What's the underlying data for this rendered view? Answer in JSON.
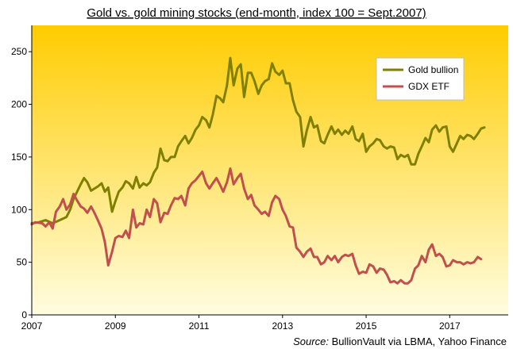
{
  "chart_data": {
    "type": "line",
    "title": "Gold vs. gold mining stocks (end-month,  index 100 = Sept.2007)",
    "xlabel": "",
    "ylabel": "",
    "xlim": [
      2007,
      2018.4
    ],
    "ylim": [
      0,
      275
    ],
    "x_ticks": [
      "2007",
      "2009",
      "2011",
      "2013",
      "2015",
      "2017"
    ],
    "y_ticks": [
      "0",
      "50",
      "100",
      "150",
      "200",
      "250"
    ],
    "grid": false,
    "legend_position": "top-right",
    "background": [
      "#ffcc00",
      "#fffde0"
    ],
    "series": [
      {
        "name": "Gold bullion",
        "color": "#808000",
        "points": [
          [
            2007.0,
            87
          ],
          [
            2007.17,
            88
          ],
          [
            2007.33,
            90
          ],
          [
            2007.5,
            87
          ],
          [
            2007.67,
            90
          ],
          [
            2007.83,
            93
          ],
          [
            2007.92,
            100
          ],
          [
            2008.0,
            110
          ],
          [
            2008.17,
            124
          ],
          [
            2008.25,
            130
          ],
          [
            2008.33,
            126
          ],
          [
            2008.42,
            118
          ],
          [
            2008.58,
            122
          ],
          [
            2008.67,
            125
          ],
          [
            2008.75,
            117
          ],
          [
            2008.83,
            121
          ],
          [
            2008.92,
            98
          ],
          [
            2009.0,
            108
          ],
          [
            2009.08,
            117
          ],
          [
            2009.17,
            121
          ],
          [
            2009.25,
            127
          ],
          [
            2009.33,
            125
          ],
          [
            2009.42,
            120
          ],
          [
            2009.5,
            131
          ],
          [
            2009.58,
            121
          ],
          [
            2009.67,
            125
          ],
          [
            2009.75,
            123
          ],
          [
            2009.83,
            126
          ],
          [
            2009.92,
            135
          ],
          [
            2010.0,
            140
          ],
          [
            2010.08,
            158
          ],
          [
            2010.17,
            147
          ],
          [
            2010.25,
            146
          ],
          [
            2010.33,
            150
          ],
          [
            2010.42,
            150
          ],
          [
            2010.5,
            160
          ],
          [
            2010.58,
            165
          ],
          [
            2010.67,
            170
          ],
          [
            2010.75,
            163
          ],
          [
            2010.83,
            168
          ],
          [
            2010.92,
            176
          ],
          [
            2011.0,
            180
          ],
          [
            2011.08,
            188
          ],
          [
            2011.17,
            185
          ],
          [
            2011.25,
            178
          ],
          [
            2011.33,
            190
          ],
          [
            2011.42,
            208
          ],
          [
            2011.5,
            206
          ],
          [
            2011.58,
            202
          ],
          [
            2011.67,
            218
          ],
          [
            2011.75,
            244
          ],
          [
            2011.83,
            218
          ],
          [
            2011.92,
            234
          ],
          [
            2012.0,
            238
          ],
          [
            2012.08,
            207
          ],
          [
            2012.17,
            230
          ],
          [
            2012.25,
            230
          ],
          [
            2012.33,
            222
          ],
          [
            2012.42,
            210
          ],
          [
            2012.5,
            218
          ],
          [
            2012.58,
            222
          ],
          [
            2012.67,
            224
          ],
          [
            2012.75,
            239
          ],
          [
            2012.83,
            231
          ],
          [
            2012.92,
            228
          ],
          [
            2013.0,
            232
          ],
          [
            2013.08,
            220
          ],
          [
            2013.17,
            220
          ],
          [
            2013.25,
            204
          ],
          [
            2013.33,
            193
          ],
          [
            2013.42,
            188
          ],
          [
            2013.5,
            160
          ],
          [
            2013.58,
            175
          ],
          [
            2013.67,
            188
          ],
          [
            2013.75,
            178
          ],
          [
            2013.83,
            180
          ],
          [
            2013.92,
            165
          ],
          [
            2014.0,
            163
          ],
          [
            2014.08,
            171
          ],
          [
            2014.17,
            179
          ],
          [
            2014.25,
            172
          ],
          [
            2014.33,
            176
          ],
          [
            2014.42,
            171
          ],
          [
            2014.5,
            175
          ],
          [
            2014.58,
            172
          ],
          [
            2014.67,
            179
          ],
          [
            2014.75,
            167
          ],
          [
            2014.83,
            165
          ],
          [
            2014.92,
            172
          ],
          [
            2015.0,
            155
          ],
          [
            2015.08,
            160
          ],
          [
            2015.17,
            163
          ],
          [
            2015.25,
            167
          ],
          [
            2015.33,
            166
          ],
          [
            2015.42,
            160
          ],
          [
            2015.5,
            158
          ],
          [
            2015.58,
            160
          ],
          [
            2015.67,
            159
          ],
          [
            2015.75,
            148
          ],
          [
            2015.83,
            152
          ],
          [
            2015.92,
            150
          ],
          [
            2016.0,
            152
          ],
          [
            2016.08,
            143
          ],
          [
            2016.17,
            143
          ],
          [
            2016.25,
            153
          ],
          [
            2016.33,
            160
          ],
          [
            2016.42,
            168
          ],
          [
            2016.5,
            164
          ],
          [
            2016.58,
            176
          ],
          [
            2016.67,
            180
          ],
          [
            2016.75,
            174
          ],
          [
            2016.83,
            178
          ],
          [
            2016.92,
            179
          ],
          [
            2017.0,
            160
          ],
          [
            2017.08,
            155
          ],
          [
            2017.17,
            163
          ],
          [
            2017.25,
            170
          ],
          [
            2017.33,
            167
          ],
          [
            2017.42,
            171
          ],
          [
            2017.5,
            170
          ],
          [
            2017.58,
            167
          ],
          [
            2017.67,
            172
          ],
          [
            2017.75,
            177
          ],
          [
            2017.83,
            178
          ]
        ]
      },
      {
        "name": "GDX ETF",
        "color": "#c0504d",
        "points": [
          [
            2007.0,
            86
          ],
          [
            2007.08,
            88
          ],
          [
            2007.25,
            87
          ],
          [
            2007.33,
            84
          ],
          [
            2007.42,
            88
          ],
          [
            2007.5,
            82
          ],
          [
            2007.58,
            98
          ],
          [
            2007.67,
            103
          ],
          [
            2007.75,
            110
          ],
          [
            2007.83,
            100
          ],
          [
            2007.92,
            105
          ],
          [
            2008.0,
            115
          ],
          [
            2008.08,
            109
          ],
          [
            2008.17,
            103
          ],
          [
            2008.25,
            101
          ],
          [
            2008.33,
            97
          ],
          [
            2008.42,
            103
          ],
          [
            2008.5,
            97
          ],
          [
            2008.58,
            90
          ],
          [
            2008.67,
            82
          ],
          [
            2008.75,
            69
          ],
          [
            2008.83,
            47
          ],
          [
            2008.92,
            60
          ],
          [
            2009.0,
            73
          ],
          [
            2009.08,
            75
          ],
          [
            2009.17,
            74
          ],
          [
            2009.25,
            80
          ],
          [
            2009.33,
            73
          ],
          [
            2009.42,
            100
          ],
          [
            2009.5,
            83
          ],
          [
            2009.58,
            87
          ],
          [
            2009.67,
            86
          ],
          [
            2009.75,
            100
          ],
          [
            2009.83,
            93
          ],
          [
            2009.92,
            110
          ],
          [
            2010.0,
            106
          ],
          [
            2010.08,
            88
          ],
          [
            2010.17,
            97
          ],
          [
            2010.25,
            96
          ],
          [
            2010.33,
            104
          ],
          [
            2010.42,
            111
          ],
          [
            2010.5,
            110
          ],
          [
            2010.58,
            113
          ],
          [
            2010.67,
            104
          ],
          [
            2010.75,
            120
          ],
          [
            2010.83,
            125
          ],
          [
            2010.92,
            128
          ],
          [
            2011.0,
            132
          ],
          [
            2011.08,
            136
          ],
          [
            2011.17,
            125
          ],
          [
            2011.25,
            120
          ],
          [
            2011.33,
            125
          ],
          [
            2011.42,
            130
          ],
          [
            2011.5,
            124
          ],
          [
            2011.58,
            117
          ],
          [
            2011.67,
            126
          ],
          [
            2011.75,
            139
          ],
          [
            2011.83,
            124
          ],
          [
            2011.92,
            130
          ],
          [
            2012.0,
            134
          ],
          [
            2012.08,
            120
          ],
          [
            2012.17,
            110
          ],
          [
            2012.25,
            114
          ],
          [
            2012.33,
            104
          ],
          [
            2012.42,
            100
          ],
          [
            2012.5,
            96
          ],
          [
            2012.58,
            98
          ],
          [
            2012.67,
            94
          ],
          [
            2012.75,
            107
          ],
          [
            2012.83,
            113
          ],
          [
            2012.92,
            110
          ],
          [
            2013.0,
            100
          ],
          [
            2013.08,
            94
          ],
          [
            2013.17,
            84
          ],
          [
            2013.25,
            83
          ],
          [
            2013.33,
            64
          ],
          [
            2013.42,
            60
          ],
          [
            2013.5,
            55
          ],
          [
            2013.58,
            60
          ],
          [
            2013.67,
            63
          ],
          [
            2013.75,
            55
          ],
          [
            2013.83,
            55
          ],
          [
            2013.92,
            48
          ],
          [
            2014.0,
            50
          ],
          [
            2014.08,
            56
          ],
          [
            2014.17,
            52
          ],
          [
            2014.25,
            56
          ],
          [
            2014.33,
            50
          ],
          [
            2014.42,
            55
          ],
          [
            2014.5,
            57
          ],
          [
            2014.58,
            56
          ],
          [
            2014.67,
            58
          ],
          [
            2014.75,
            47
          ],
          [
            2014.83,
            39
          ],
          [
            2014.92,
            41
          ],
          [
            2015.0,
            40
          ],
          [
            2015.08,
            48
          ],
          [
            2015.17,
            46
          ],
          [
            2015.25,
            40
          ],
          [
            2015.33,
            44
          ],
          [
            2015.42,
            43
          ],
          [
            2015.5,
            38
          ],
          [
            2015.58,
            31
          ],
          [
            2015.67,
            32
          ],
          [
            2015.75,
            30
          ],
          [
            2015.83,
            33
          ],
          [
            2015.92,
            30
          ],
          [
            2016.0,
            30
          ],
          [
            2016.08,
            33
          ],
          [
            2016.17,
            44
          ],
          [
            2016.25,
            47
          ],
          [
            2016.33,
            56
          ],
          [
            2016.42,
            50
          ],
          [
            2016.5,
            62
          ],
          [
            2016.58,
            67
          ],
          [
            2016.67,
            56
          ],
          [
            2016.75,
            58
          ],
          [
            2016.83,
            55
          ],
          [
            2016.92,
            46
          ],
          [
            2017.0,
            47
          ],
          [
            2017.08,
            52
          ],
          [
            2017.17,
            50
          ],
          [
            2017.25,
            50
          ],
          [
            2017.33,
            48
          ],
          [
            2017.42,
            50
          ],
          [
            2017.5,
            49
          ],
          [
            2017.58,
            50
          ],
          [
            2017.67,
            55
          ],
          [
            2017.75,
            53
          ]
        ]
      }
    ],
    "source_label": "Source:",
    "source_text": "BullionVault via LBMA, Yahoo Finance"
  }
}
